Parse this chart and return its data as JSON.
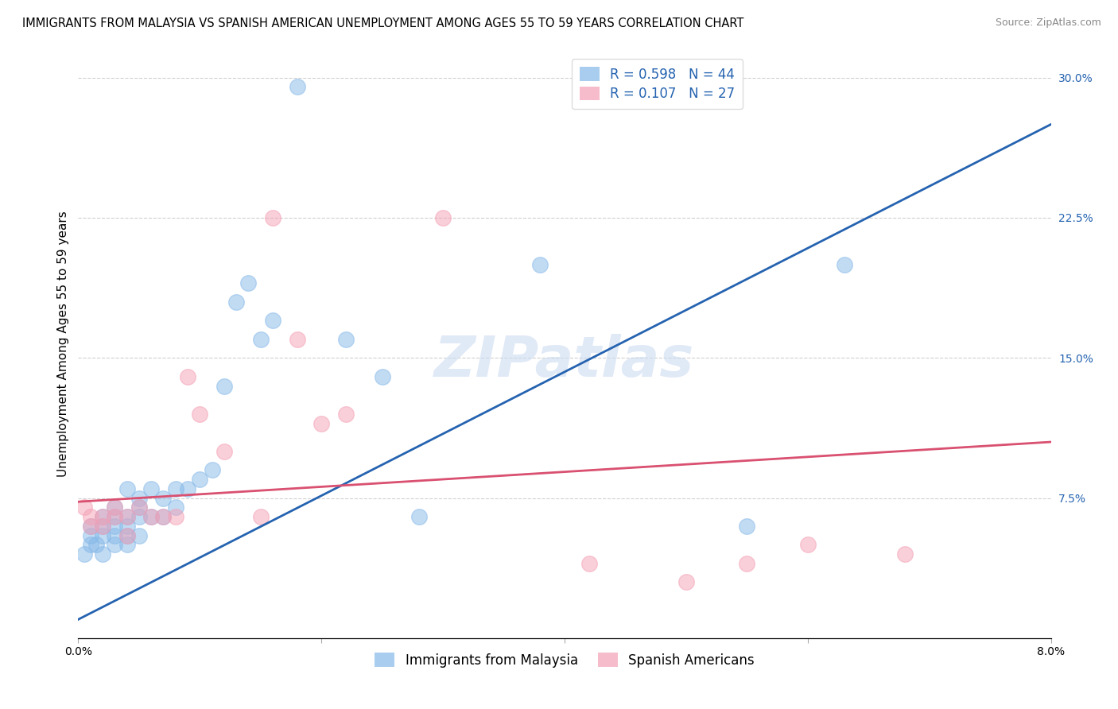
{
  "title": "IMMIGRANTS FROM MALAYSIA VS SPANISH AMERICAN UNEMPLOYMENT AMONG AGES 55 TO 59 YEARS CORRELATION CHART",
  "source": "Source: ZipAtlas.com",
  "ylabel": "Unemployment Among Ages 55 to 59 years",
  "xlim": [
    0.0,
    0.08
  ],
  "ylim": [
    0.0,
    0.315
  ],
  "yticks_right": [
    0.075,
    0.15,
    0.225,
    0.3
  ],
  "ytick_right_labels": [
    "7.5%",
    "15.0%",
    "22.5%",
    "30.0%"
  ],
  "legend_r1": "R = 0.598   N = 44",
  "legend_r2": "R = 0.107   N = 27",
  "legend_label1": "Immigrants from Malaysia",
  "legend_label2": "Spanish Americans",
  "blue_scatter_color": "#85b8e8",
  "pink_scatter_color": "#f4a0b5",
  "blue_line_color": "#2563b0",
  "pink_line_color": "#d95070",
  "blue_line_x": [
    0.0,
    0.08
  ],
  "blue_line_y": [
    0.01,
    0.275
  ],
  "pink_line_x": [
    0.0,
    0.08
  ],
  "pink_line_y": [
    0.073,
    0.105
  ],
  "blue_scatter_x": [
    0.0005,
    0.001,
    0.001,
    0.001,
    0.0015,
    0.002,
    0.002,
    0.002,
    0.002,
    0.003,
    0.003,
    0.003,
    0.003,
    0.003,
    0.004,
    0.004,
    0.004,
    0.004,
    0.004,
    0.005,
    0.005,
    0.005,
    0.006,
    0.006,
    0.007,
    0.007,
    0.008,
    0.008,
    0.009,
    0.01,
    0.011,
    0.012,
    0.013,
    0.014,
    0.015,
    0.016,
    0.018,
    0.022,
    0.025,
    0.028,
    0.038,
    0.055,
    0.063,
    0.005
  ],
  "blue_scatter_y": [
    0.045,
    0.05,
    0.055,
    0.06,
    0.05,
    0.045,
    0.055,
    0.06,
    0.065,
    0.05,
    0.055,
    0.06,
    0.065,
    0.07,
    0.05,
    0.055,
    0.06,
    0.065,
    0.08,
    0.055,
    0.065,
    0.07,
    0.065,
    0.08,
    0.065,
    0.075,
    0.07,
    0.08,
    0.08,
    0.085,
    0.09,
    0.135,
    0.18,
    0.19,
    0.16,
    0.17,
    0.295,
    0.16,
    0.14,
    0.065,
    0.2,
    0.06,
    0.2,
    0.075
  ],
  "pink_scatter_x": [
    0.0005,
    0.001,
    0.001,
    0.002,
    0.002,
    0.003,
    0.003,
    0.004,
    0.004,
    0.005,
    0.006,
    0.007,
    0.008,
    0.009,
    0.01,
    0.012,
    0.015,
    0.016,
    0.018,
    0.02,
    0.022,
    0.03,
    0.042,
    0.05,
    0.055,
    0.06,
    0.068
  ],
  "pink_scatter_y": [
    0.07,
    0.06,
    0.065,
    0.06,
    0.065,
    0.065,
    0.07,
    0.055,
    0.065,
    0.07,
    0.065,
    0.065,
    0.065,
    0.14,
    0.12,
    0.1,
    0.065,
    0.225,
    0.16,
    0.115,
    0.12,
    0.225,
    0.04,
    0.03,
    0.04,
    0.05,
    0.045
  ],
  "watermark": "ZIPatlas",
  "watermark_color": "#c8d8f0",
  "watermark_alpha": 0.55,
  "watermark_fontsize": 52,
  "background_color": "#ffffff",
  "grid_color": "#d0d0d0",
  "title_fontsize": 10.5,
  "axis_label_fontsize": 11,
  "tick_fontsize": 10,
  "legend_fontsize": 12
}
